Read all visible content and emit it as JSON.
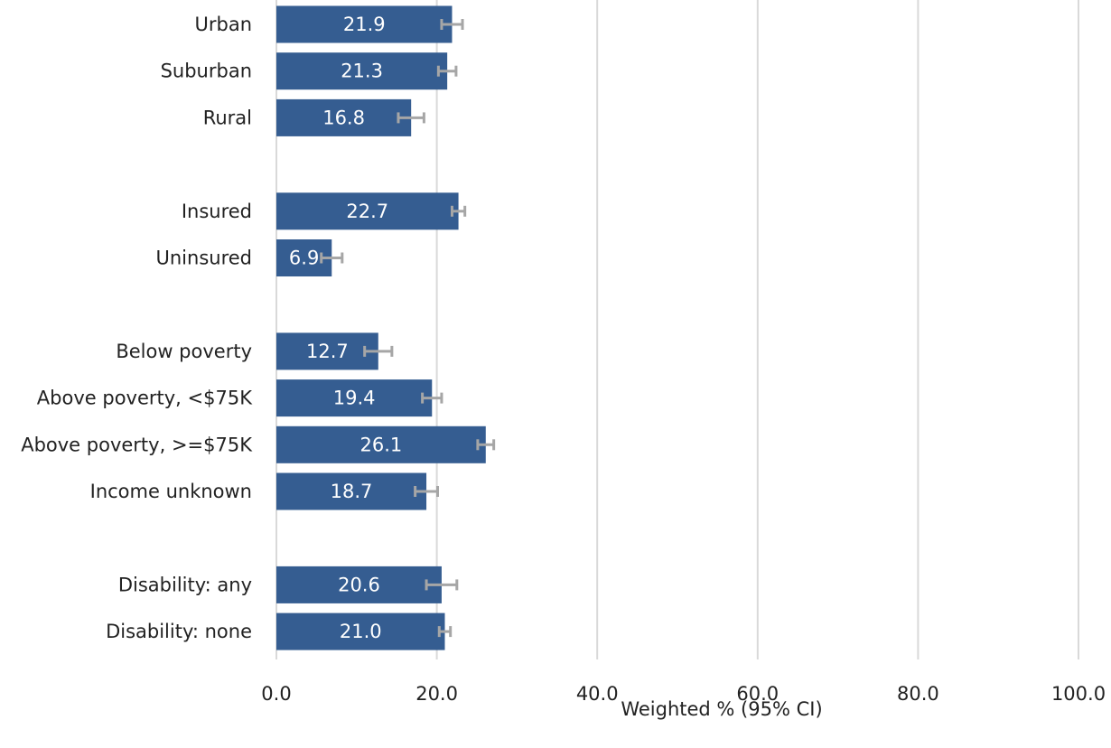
{
  "chart_data": {
    "type": "bar",
    "orientation": "horizontal",
    "xlabel": "Weighted % (95% CI)",
    "xlim": [
      0,
      100
    ],
    "xticks": [
      "0.0",
      "20.0",
      "40.0",
      "60.0",
      "80.0",
      "100.0"
    ],
    "grid": "vertical",
    "legend": "none",
    "colors": {
      "bar": "#355d91",
      "error_bar": "#a6a6a6",
      "grid": "#d9d9d9",
      "data_label": "#ffffff"
    },
    "bars": [
      {
        "category": "Urban",
        "value": 21.9,
        "label": "21.9",
        "ci_low": 20.6,
        "ci_high": 23.2,
        "group": 0
      },
      {
        "category": "Suburban",
        "value": 21.3,
        "label": "21.3",
        "ci_low": 20.2,
        "ci_high": 22.4,
        "group": 0
      },
      {
        "category": "Rural",
        "value": 16.8,
        "label": "16.8",
        "ci_low": 15.2,
        "ci_high": 18.4,
        "group": 0
      },
      {
        "category": "Insured",
        "value": 22.7,
        "label": "22.7",
        "ci_low": 21.9,
        "ci_high": 23.5,
        "group": 1
      },
      {
        "category": "Uninsured",
        "value": 6.9,
        "label": "6.9",
        "ci_low": 5.6,
        "ci_high": 8.2,
        "group": 1
      },
      {
        "category": "Below poverty",
        "value": 12.7,
        "label": "12.7",
        "ci_low": 11.0,
        "ci_high": 14.4,
        "group": 2
      },
      {
        "category": "Above poverty, <$75K",
        "value": 19.4,
        "label": "19.4",
        "ci_low": 18.2,
        "ci_high": 20.6,
        "group": 2
      },
      {
        "category": "Above poverty, >=$75K",
        "value": 26.1,
        "label": "26.1",
        "ci_low": 25.1,
        "ci_high": 27.1,
        "group": 2
      },
      {
        "category": "Income unknown",
        "value": 18.7,
        "label": "18.7",
        "ci_low": 17.3,
        "ci_high": 20.1,
        "group": 2
      },
      {
        "category": "Disability: any",
        "value": 20.6,
        "label": "20.6",
        "ci_low": 18.7,
        "ci_high": 22.5,
        "group": 3
      },
      {
        "category": "Disability: none",
        "value": 21.0,
        "label": "21.0",
        "ci_low": 20.3,
        "ci_high": 21.7,
        "group": 3
      }
    ]
  }
}
